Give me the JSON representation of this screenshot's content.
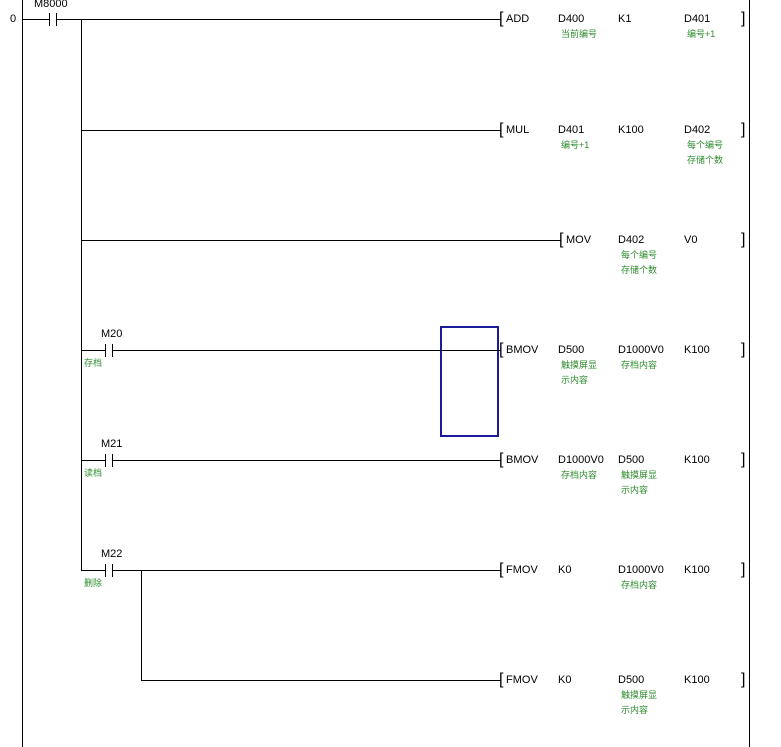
{
  "step_number": "0",
  "first_contact": "M8000",
  "rungs": [
    {
      "contact": null,
      "comment": null,
      "instr": "ADD",
      "ops": [
        {
          "name": "D400",
          "comment": "当前编号"
        },
        {
          "name": "K1",
          "comment": ""
        },
        {
          "name": "D401",
          "comment": "编号+1"
        }
      ]
    },
    {
      "contact": null,
      "comment": null,
      "instr": "MUL",
      "ops": [
        {
          "name": "D401",
          "comment": "编号+1"
        },
        {
          "name": "K100",
          "comment": ""
        },
        {
          "name": "D402",
          "comment": "每个编号\n存储个数"
        }
      ]
    },
    {
      "contact": null,
      "comment": null,
      "instr": "MOV",
      "ops": [
        {
          "name": "D402",
          "comment": "每个编号\n存储个数"
        },
        {
          "name": "V0",
          "comment": ""
        }
      ]
    },
    {
      "contact": "M20",
      "comment": "存档",
      "instr": "BMOV",
      "ops": [
        {
          "name": "D500",
          "comment": "触摸屏显\n示内容"
        },
        {
          "name": "D1000V0",
          "comment": "存档内容"
        },
        {
          "name": "K100",
          "comment": ""
        }
      ]
    },
    {
      "contact": "M21",
      "comment": "读档",
      "instr": "BMOV",
      "ops": [
        {
          "name": "D1000V0",
          "comment": "存档内容"
        },
        {
          "name": "D500",
          "comment": "触摸屏显\n示内容"
        },
        {
          "name": "K100",
          "comment": ""
        }
      ]
    },
    {
      "contact": "M22",
      "comment": "删除",
      "instr": "FMOV",
      "ops": [
        {
          "name": "K0",
          "comment": ""
        },
        {
          "name": "D1000V0",
          "comment": "存档内容"
        },
        {
          "name": "K100",
          "comment": ""
        }
      ]
    },
    {
      "contact": null,
      "comment": null,
      "instr": "FMOV",
      "ops": [
        {
          "name": "K0",
          "comment": ""
        },
        {
          "name": "D500",
          "comment": "触摸屏显\n示内容"
        },
        {
          "name": "K100",
          "comment": ""
        }
      ]
    }
  ],
  "colors": {
    "comment": "#2e8b2e",
    "selection": "#1a1a9a",
    "line": "#000000"
  }
}
